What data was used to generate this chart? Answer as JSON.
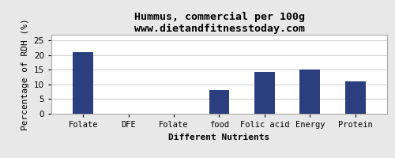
{
  "title": "Hummus, commercial per 100g",
  "subtitle": "www.dietandfitnesstoday.com",
  "xlabel": "Different Nutrients",
  "ylabel": "Percentage of RDH (%)",
  "categories": [
    "Folate",
    "DFE",
    "Folate",
    "food",
    "Folic acid",
    "Energy",
    "Protein"
  ],
  "values": [
    21.0,
    0.0,
    0.0,
    8.0,
    14.3,
    15.1,
    11.0
  ],
  "bar_color": "#2b3f7e",
  "ylim": [
    0,
    27
  ],
  "yticks": [
    0,
    5,
    10,
    15,
    20,
    25
  ],
  "background_color": "#e8e8e8",
  "plot_bg_color": "#ffffff",
  "title_fontsize": 9.5,
  "axis_label_fontsize": 8,
  "tick_fontsize": 7.5,
  "bar_width": 0.45
}
